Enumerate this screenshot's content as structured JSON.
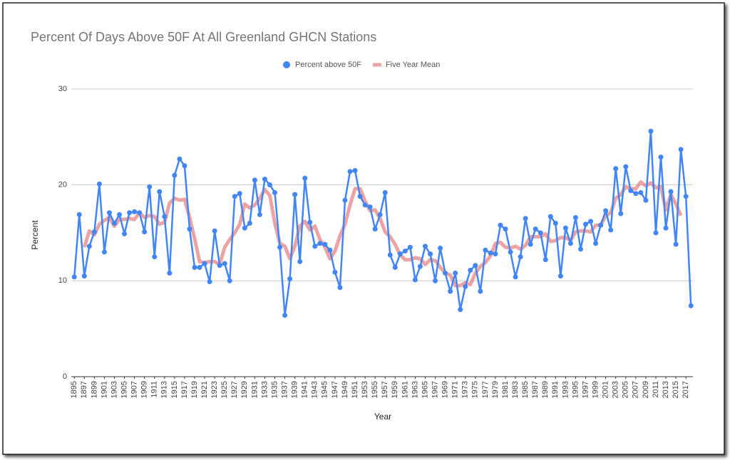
{
  "chart_data": {
    "type": "line",
    "title": "Percent Of Days Above 50F At All Greenland GHCN Stations",
    "x_label": "Year",
    "y_label": "Percent",
    "x": [
      1895,
      1896,
      1897,
      1898,
      1899,
      1900,
      1901,
      1902,
      1903,
      1904,
      1905,
      1906,
      1907,
      1908,
      1909,
      1910,
      1911,
      1912,
      1913,
      1914,
      1915,
      1916,
      1917,
      1918,
      1919,
      1920,
      1921,
      1922,
      1923,
      1924,
      1925,
      1926,
      1927,
      1928,
      1929,
      1930,
      1931,
      1932,
      1933,
      1934,
      1935,
      1936,
      1937,
      1938,
      1939,
      1940,
      1941,
      1942,
      1943,
      1944,
      1945,
      1946,
      1947,
      1948,
      1949,
      1950,
      1951,
      1952,
      1953,
      1954,
      1955,
      1956,
      1957,
      1958,
      1959,
      1960,
      1961,
      1962,
      1963,
      1964,
      1965,
      1966,
      1967,
      1968,
      1969,
      1970,
      1971,
      1972,
      1973,
      1974,
      1975,
      1976,
      1977,
      1978,
      1979,
      1980,
      1981,
      1982,
      1983,
      1984,
      1985,
      1986,
      1987,
      1988,
      1989,
      1990,
      1991,
      1992,
      1993,
      1994,
      1995,
      1996,
      1997,
      1998,
      1999,
      2000,
      2001,
      2002,
      2003,
      2004,
      2005,
      2006,
      2007,
      2008,
      2009,
      2010,
      2011,
      2012,
      2013,
      2014,
      2015,
      2016,
      2017,
      2018
    ],
    "series": [
      {
        "name": "Percent above 50F",
        "color": "#4285f4",
        "markers": true,
        "values": [
          10.4,
          16.9,
          10.5,
          13.6,
          15.1,
          20.1,
          13.0,
          17.1,
          16.0,
          16.9,
          14.9,
          17.1,
          17.2,
          17.1,
          15.1,
          19.8,
          12.5,
          19.3,
          16.7,
          10.8,
          21.0,
          22.7,
          22.0,
          15.4,
          11.4,
          11.4,
          11.8,
          9.9,
          15.2,
          11.6,
          11.8,
          10.0,
          18.8,
          19.1,
          15.5,
          16.0,
          20.5,
          16.9,
          20.6,
          20.0,
          19.2,
          13.5,
          6.4,
          10.2,
          19.0,
          12.0,
          20.7,
          16.1,
          13.6,
          13.9,
          13.8,
          13.2,
          10.9,
          9.3,
          18.4,
          21.4,
          21.5,
          18.8,
          17.9,
          17.7,
          15.4,
          16.9,
          19.2,
          12.7,
          11.4,
          12.8,
          13.1,
          13.5,
          10.1,
          11.5,
          13.6,
          12.8,
          10.0,
          13.4,
          10.8,
          8.9,
          10.8,
          7.0,
          9.4,
          11.1,
          11.6,
          8.9,
          13.2,
          12.9,
          12.8,
          15.8,
          15.4,
          13.0,
          10.4,
          12.5,
          16.5,
          13.8,
          15.4,
          15.0,
          12.2,
          16.7,
          16.0,
          10.5,
          15.5,
          13.9,
          16.6,
          13.3,
          15.9,
          16.2,
          13.9,
          15.8,
          17.3,
          15.3,
          21.7,
          17.0,
          21.9,
          19.4,
          19.1,
          19.2,
          18.4,
          25.6,
          15.0,
          22.9,
          15.5,
          19.3,
          13.8,
          23.7,
          18.8,
          7.4
        ]
      },
      {
        "name": "Five Year Mean",
        "color": "#e06666",
        "markers": false,
        "values": [
          null,
          null,
          13.5,
          15.2,
          14.8,
          15.9,
          16.3,
          16.6,
          15.7,
          16.4,
          16.4,
          16.5,
          16.4,
          17.1,
          16.6,
          16.8,
          16.7,
          15.9,
          16.1,
          18.1,
          18.6,
          18.4,
          18.5,
          16.6,
          14.4,
          12.0,
          11.9,
          12.0,
          12.0,
          11.7,
          13.5,
          14.3,
          15.0,
          15.9,
          18.0,
          17.6,
          17.9,
          18.6,
          19.5,
          18.9,
          16.0,
          13.9,
          13.6,
          12.3,
          13.6,
          15.7,
          16.2,
          15.3,
          15.7,
          14.3,
          13.5,
          12.3,
          13.1,
          14.7,
          15.9,
          17.9,
          19.6,
          19.6,
          18.3,
          17.3,
          17.4,
          16.5,
          15.1,
          14.6,
          13.8,
          12.7,
          12.2,
          12.2,
          12.4,
          12.3,
          11.7,
          12.2,
          12.1,
          11.4,
          10.8,
          10.6,
          9.5,
          9.5,
          9.8,
          9.6,
          10.8,
          11.5,
          11.9,
          12.6,
          13.9,
          14.0,
          13.5,
          13.4,
          13.6,
          13.3,
          13.7,
          14.6,
          14.6,
          14.6,
          14.9,
          14.1,
          14.2,
          14.5,
          14.5,
          14.2,
          15.1,
          15.2,
          15.2,
          15.1,
          15.8,
          15.8,
          16.8,
          17.1,
          18.6,
          19.0,
          19.8,
          19.6,
          19.6,
          20.3,
          19.9,
          20.2,
          19.7,
          19.8,
          17.4,
          19.0,
          18.0,
          16.8,
          null,
          null
        ]
      }
    ],
    "xlim": [
      1894.4,
      2018.4
    ],
    "xticks": [
      1895,
      1897,
      1899,
      1901,
      1903,
      1905,
      1907,
      1909,
      1911,
      1913,
      1915,
      1917,
      1919,
      1921,
      1923,
      1925,
      1927,
      1929,
      1931,
      1933,
      1935,
      1937,
      1939,
      1941,
      1943,
      1945,
      1947,
      1949,
      1951,
      1953,
      1955,
      1957,
      1959,
      1961,
      1963,
      1965,
      1967,
      1969,
      1971,
      1973,
      1975,
      1977,
      1979,
      1981,
      1983,
      1985,
      1987,
      1989,
      1991,
      1993,
      1995,
      1997,
      1999,
      2001,
      2003,
      2005,
      2007,
      2009,
      2011,
      2013,
      2015,
      2017
    ],
    "ylim": [
      0,
      30
    ],
    "yticks": [
      0,
      10,
      20,
      30
    ],
    "grid": true,
    "legend": "top"
  }
}
